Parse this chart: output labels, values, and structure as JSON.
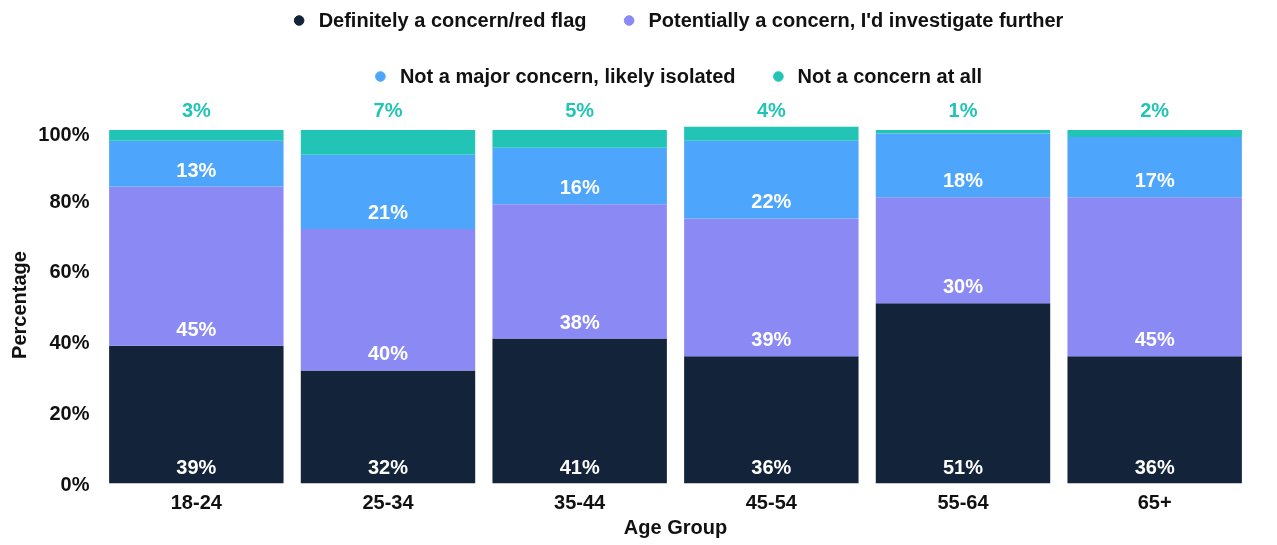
{
  "chart_data": {
    "type": "bar",
    "stacked": true,
    "xlabel": "Age Group",
    "ylabel": "Percentage",
    "categories": [
      "18-24",
      "25-34",
      "35-44",
      "45-54",
      "55-64",
      "65+"
    ],
    "series": [
      {
        "name": "Definitely a concern/red flag",
        "color": "#13233a",
        "values": [
          39,
          32,
          41,
          36,
          51,
          36
        ],
        "value_labels": [
          "39%",
          "32%",
          "41%",
          "36%",
          "51%",
          "36%"
        ]
      },
      {
        "name": "Potentially a concern, I'd investigate further",
        "color": "#8b8af5",
        "values": [
          45,
          40,
          38,
          39,
          30,
          45
        ],
        "value_labels": [
          "45%",
          "40%",
          "38%",
          "39%",
          "30%",
          "45%"
        ]
      },
      {
        "name": "Not a major concern, likely isolated",
        "color": "#4da6fb",
        "values": [
          13,
          21,
          16,
          22,
          18,
          17
        ],
        "value_labels": [
          "13%",
          "21%",
          "16%",
          "22%",
          "18%",
          "17%"
        ]
      },
      {
        "name": "Not a concern at all",
        "color": "#22c4b6",
        "values": [
          3,
          7,
          5,
          4,
          1,
          2
        ],
        "value_labels": [
          "3%",
          "7%",
          "5%",
          "4%",
          "1%",
          "2%"
        ]
      }
    ],
    "ylim": [
      0,
      101
    ],
    "yticks": [
      {
        "value": 0,
        "label": "0%"
      },
      {
        "value": 20,
        "label": "20%"
      },
      {
        "value": 40,
        "label": "40%"
      },
      {
        "value": 60,
        "label": "60%"
      },
      {
        "value": 80,
        "label": "80%"
      },
      {
        "value": 100,
        "label": "100%"
      }
    ],
    "grid": false,
    "legend": "top"
  }
}
